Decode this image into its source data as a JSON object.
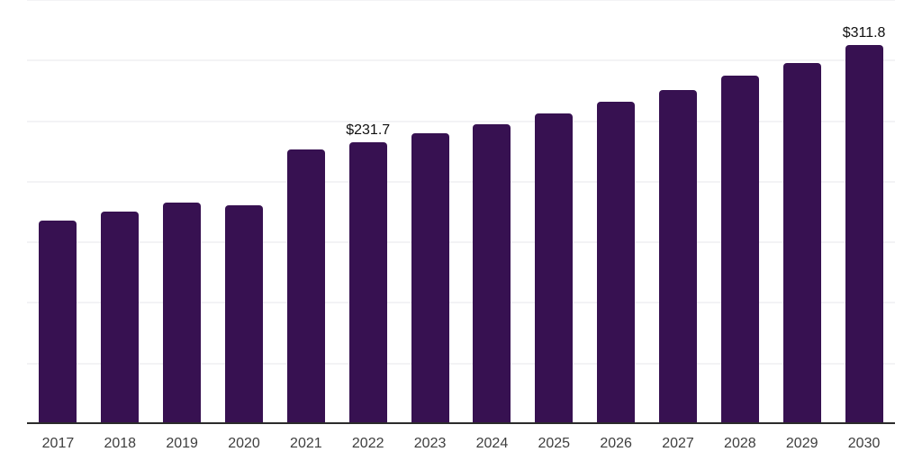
{
  "chart_data": {
    "type": "bar",
    "title": "",
    "xlabel": "",
    "ylabel": "",
    "categories": [
      "2017",
      "2018",
      "2019",
      "2020",
      "2021",
      "2022",
      "2023",
      "2024",
      "2025",
      "2026",
      "2027",
      "2028",
      "2029",
      "2030"
    ],
    "values": [
      167,
      174.5,
      182,
      180,
      226,
      231.7,
      239.5,
      247,
      256,
      265.5,
      275,
      286.5,
      297.5,
      311.8
    ],
    "data_labels": {
      "2022": "$231.7",
      "2030": "$311.8"
    },
    "ylim": [
      0,
      350
    ],
    "gridline_values": [
      50,
      100,
      150,
      200,
      250,
      300,
      350
    ],
    "grid": "horizontal",
    "legend_position": "none",
    "y_axis_tick_labels": "none",
    "bar_color": "#371151",
    "axis_line_color": "#2b2b2b",
    "gridline_color": "#f3f3f5",
    "tick_label_color": "#3e3e3e",
    "data_label_color": "#101010"
  }
}
